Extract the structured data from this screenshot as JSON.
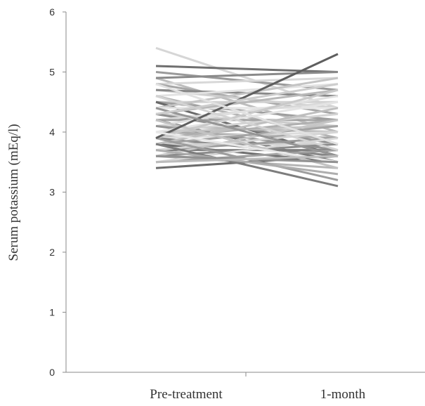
{
  "chart_data": {
    "type": "line",
    "title": "",
    "xlabel": "",
    "ylabel": "Serum potassium (mEq/l)",
    "categories": [
      "Pre-treatment",
      "1-month"
    ],
    "ylim": [
      0,
      6
    ],
    "yticks": [
      "0",
      "1",
      "2",
      "3",
      "4",
      "5",
      "6"
    ],
    "grid": false,
    "legend": "none",
    "series": [
      {
        "values": [
          5.4,
          4.4
        ],
        "color": "#d6d6d6"
      },
      {
        "values": [
          5.1,
          5.0
        ],
        "color": "#6f6f6f"
      },
      {
        "values": [
          5.0,
          4.7
        ],
        "color": "#9a9a9a"
      },
      {
        "values": [
          4.9,
          4.0
        ],
        "color": "#bdbdbd"
      },
      {
        "values": [
          4.9,
          5.0
        ],
        "color": "#8a8a8a"
      },
      {
        "values": [
          4.8,
          4.9
        ],
        "color": "#d8d8d8"
      },
      {
        "values": [
          4.8,
          4.3
        ],
        "color": "#a7a7a7"
      },
      {
        "values": [
          4.7,
          4.4
        ],
        "color": "#cfcfcf"
      },
      {
        "values": [
          4.7,
          4.6
        ],
        "color": "#888888"
      },
      {
        "values": [
          4.6,
          4.8
        ],
        "color": "#e2e2e2"
      },
      {
        "values": [
          4.6,
          3.9
        ],
        "color": "#b3b3b3"
      },
      {
        "values": [
          4.5,
          4.5
        ],
        "color": "#d2d2d2"
      },
      {
        "values": [
          4.5,
          4.2
        ],
        "color": "#9e9e9e"
      },
      {
        "values": [
          4.5,
          3.6
        ],
        "color": "#6a6a6a"
      },
      {
        "values": [
          4.4,
          4.9
        ],
        "color": "#c4c4c4"
      },
      {
        "values": [
          4.4,
          4.4
        ],
        "color": "#e6e6e6"
      },
      {
        "values": [
          4.3,
          4.7
        ],
        "color": "#b8b8b8"
      },
      {
        "values": [
          4.3,
          4.1
        ],
        "color": "#cccccc"
      },
      {
        "values": [
          4.3,
          3.8
        ],
        "color": "#8f8f8f"
      },
      {
        "values": [
          4.2,
          4.5
        ],
        "color": "#d9d9d9"
      },
      {
        "values": [
          4.2,
          4.2
        ],
        "color": "#a2a2a2"
      },
      {
        "values": [
          4.2,
          3.5
        ],
        "color": "#7a7a7a"
      },
      {
        "values": [
          4.1,
          4.6
        ],
        "color": "#e0e0e0"
      },
      {
        "values": [
          4.1,
          4.0
        ],
        "color": "#bababa"
      },
      {
        "values": [
          4.1,
          3.7
        ],
        "color": "#939393"
      },
      {
        "values": [
          4.0,
          4.3
        ],
        "color": "#d4d4d4"
      },
      {
        "values": [
          4.0,
          4.1
        ],
        "color": "#c1c1c1"
      },
      {
        "values": [
          4.0,
          3.9
        ],
        "color": "#a9a9a9"
      },
      {
        "values": [
          4.0,
          4.5
        ],
        "color": "#e4e4e4"
      },
      {
        "values": [
          3.9,
          4.2
        ],
        "color": "#b0b0b0"
      },
      {
        "values": [
          3.9,
          4.0
        ],
        "color": "#dcdcdc"
      },
      {
        "values": [
          3.9,
          3.6
        ],
        "color": "#858585"
      },
      {
        "values": [
          3.9,
          4.7
        ],
        "color": "#c9c9c9"
      },
      {
        "values": [
          3.8,
          4.1
        ],
        "color": "#a4a4a4"
      },
      {
        "values": [
          3.8,
          3.8
        ],
        "color": "#d0d0d0"
      },
      {
        "values": [
          3.8,
          3.5
        ],
        "color": "#6e6e6e"
      },
      {
        "values": [
          3.8,
          4.4
        ],
        "color": "#bfbfbf"
      },
      {
        "values": [
          3.7,
          3.9
        ],
        "color": "#9b9b9b"
      },
      {
        "values": [
          3.7,
          3.7
        ],
        "color": "#7f7f7f"
      },
      {
        "values": [
          3.7,
          4.0
        ],
        "color": "#d5d5d5"
      },
      {
        "values": [
          3.6,
          3.8
        ],
        "color": "#8c8c8c"
      },
      {
        "values": [
          3.6,
          3.4
        ],
        "color": "#b6b6b6"
      },
      {
        "values": [
          3.6,
          4.2
        ],
        "color": "#c6c6c6"
      },
      {
        "values": [
          3.5,
          3.7
        ],
        "color": "#a0a0a0"
      },
      {
        "values": [
          3.5,
          3.9
        ],
        "color": "#d7d7d7"
      },
      {
        "values": [
          3.4,
          3.6
        ],
        "color": "#6c6c6c"
      },
      {
        "values": [
          3.8,
          3.1
        ],
        "color": "#7d7d7d"
      },
      {
        "values": [
          3.9,
          3.2
        ],
        "color": "#9d9d9d"
      },
      {
        "values": [
          4.2,
          3.4
        ],
        "color": "#c3c3c3"
      },
      {
        "values": [
          3.7,
          3.3
        ],
        "color": "#aeaeae"
      },
      {
        "values": [
          3.9,
          5.3
        ],
        "color": "#5e5e5e"
      },
      {
        "values": [
          4.6,
          3.7
        ],
        "color": "#d3d3d3"
      },
      {
        "values": [
          4.4,
          3.6
        ],
        "color": "#959595"
      },
      {
        "values": [
          4.0,
          3.5
        ],
        "color": "#e8e8e8"
      },
      {
        "values": [
          3.6,
          3.5
        ],
        "color": "#919191"
      },
      {
        "values": [
          4.3,
          4.8
        ],
        "color": "#cdcdcd"
      },
      {
        "values": [
          4.8,
          3.8
        ],
        "color": "#e1e1e1"
      },
      {
        "values": [
          3.5,
          3.6
        ],
        "color": "#bcbcbc"
      }
    ]
  }
}
